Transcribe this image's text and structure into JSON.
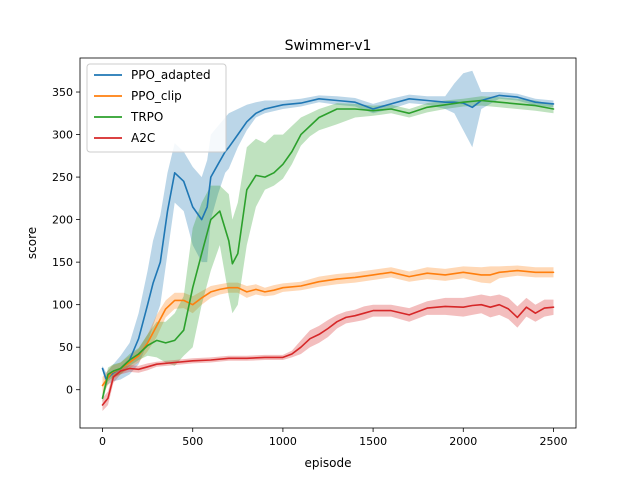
{
  "chart_data": {
    "type": "line",
    "title": "Swimmer-v1",
    "xlabel": "episode",
    "ylabel": "score",
    "xlim": [
      -125,
      2625
    ],
    "ylim": [
      -45,
      390
    ],
    "xticks": [
      0,
      500,
      1000,
      1500,
      2000,
      2500
    ],
    "yticks": [
      0,
      50,
      100,
      150,
      200,
      250,
      300,
      350
    ],
    "grid": false,
    "legend_position": "top-left",
    "series": [
      {
        "name": "PPO_adapted",
        "color": "#1f77b4",
        "x": [
          0,
          20,
          60,
          100,
          150,
          200,
          250,
          280,
          320,
          360,
          400,
          450,
          500,
          550,
          580,
          600,
          640,
          680,
          700,
          750,
          800,
          850,
          900,
          1000,
          1100,
          1200,
          1300,
          1400,
          1500,
          1600,
          1700,
          1800,
          1900,
          1950,
          2000,
          2050,
          2100,
          2200,
          2300,
          2400,
          2500
        ],
        "y": [
          25,
          12,
          20,
          25,
          35,
          60,
          100,
          125,
          150,
          210,
          255,
          245,
          215,
          200,
          215,
          250,
          265,
          280,
          285,
          300,
          315,
          325,
          330,
          335,
          337,
          342,
          340,
          338,
          330,
          336,
          342,
          340,
          338,
          338,
          337,
          332,
          340,
          346,
          344,
          338,
          336
        ],
        "lower": [
          22,
          5,
          10,
          12,
          18,
          30,
          55,
          75,
          100,
          160,
          220,
          210,
          170,
          150,
          150,
          200,
          230,
          255,
          260,
          285,
          305,
          320,
          325,
          330,
          333,
          338,
          335,
          333,
          325,
          330,
          337,
          335,
          330,
          325,
          305,
          285,
          330,
          342,
          340,
          334,
          332
        ],
        "upper": [
          28,
          20,
          30,
          40,
          55,
          90,
          140,
          175,
          205,
          255,
          290,
          280,
          262,
          250,
          270,
          300,
          310,
          320,
          325,
          330,
          335,
          338,
          340,
          340,
          342,
          346,
          345,
          343,
          336,
          342,
          347,
          345,
          345,
          360,
          372,
          375,
          350,
          350,
          348,
          342,
          340
        ]
      },
      {
        "name": "PPO_clip",
        "color": "#ff7f0e",
        "x": [
          0,
          50,
          100,
          150,
          200,
          250,
          300,
          350,
          400,
          450,
          500,
          550,
          600,
          650,
          700,
          750,
          800,
          850,
          900,
          950,
          1000,
          1100,
          1200,
          1300,
          1400,
          1500,
          1600,
          1700,
          1800,
          1900,
          2000,
          2100,
          2150,
          2200,
          2300,
          2400,
          2500
        ],
        "y": [
          5,
          20,
          25,
          32,
          40,
          55,
          75,
          95,
          105,
          105,
          100,
          108,
          115,
          118,
          120,
          120,
          115,
          118,
          115,
          117,
          120,
          122,
          127,
          130,
          132,
          135,
          138,
          133,
          137,
          135,
          138,
          135,
          135,
          138,
          140,
          138,
          138
        ],
        "lower": [
          -5,
          12,
          18,
          25,
          32,
          45,
          62,
          85,
          95,
          96,
          90,
          100,
          108,
          112,
          114,
          114,
          108,
          112,
          110,
          111,
          115,
          117,
          121,
          124,
          126,
          129,
          132,
          127,
          130,
          128,
          131,
          126,
          125,
          131,
          134,
          132,
          132
        ],
        "upper": [
          15,
          28,
          32,
          40,
          48,
          65,
          88,
          105,
          114,
          114,
          110,
          116,
          122,
          124,
          126,
          126,
          122,
          124,
          120,
          123,
          125,
          127,
          133,
          136,
          138,
          141,
          144,
          139,
          144,
          142,
          145,
          144,
          145,
          145,
          146,
          144,
          144
        ]
      },
      {
        "name": "TRPO",
        "color": "#2ca02c",
        "x": [
          0,
          30,
          60,
          100,
          150,
          200,
          250,
          300,
          350,
          400,
          450,
          500,
          550,
          600,
          650,
          700,
          720,
          750,
          800,
          850,
          900,
          950,
          1000,
          1050,
          1100,
          1150,
          1200,
          1300,
          1400,
          1500,
          1600,
          1700,
          1800,
          1900,
          2000,
          2100,
          2200,
          2300,
          2400,
          2500
        ],
        "y": [
          -10,
          18,
          22,
          25,
          35,
          42,
          52,
          58,
          55,
          58,
          70,
          120,
          160,
          200,
          210,
          175,
          148,
          160,
          235,
          252,
          250,
          255,
          265,
          280,
          300,
          310,
          320,
          330,
          330,
          328,
          330,
          325,
          332,
          335,
          338,
          340,
          338,
          336,
          334,
          330
        ],
        "lower": [
          -15,
          10,
          15,
          18,
          28,
          35,
          40,
          38,
          32,
          28,
          40,
          50,
          100,
          140,
          170,
          110,
          90,
          100,
          170,
          215,
          235,
          240,
          248,
          265,
          287,
          298,
          305,
          312,
          320,
          322,
          325,
          320,
          326,
          330,
          333,
          334,
          332,
          330,
          328,
          325
        ],
        "upper": [
          -5,
          26,
          30,
          32,
          42,
          49,
          65,
          80,
          80,
          90,
          110,
          190,
          220,
          240,
          240,
          230,
          200,
          220,
          285,
          295,
          290,
          300,
          300,
          310,
          320,
          325,
          330,
          337,
          336,
          334,
          335,
          330,
          337,
          340,
          342,
          345,
          344,
          342,
          340,
          335
        ]
      },
      {
        "name": "A2C",
        "color": "#d62728",
        "x": [
          0,
          30,
          60,
          100,
          150,
          200,
          250,
          300,
          400,
          500,
          600,
          700,
          800,
          900,
          1000,
          1050,
          1100,
          1150,
          1200,
          1250,
          1300,
          1350,
          1400,
          1450,
          1500,
          1600,
          1700,
          1800,
          1900,
          2000,
          2050,
          2100,
          2150,
          2200,
          2250,
          2300,
          2350,
          2400,
          2450,
          2500
        ],
        "y": [
          -18,
          -10,
          15,
          22,
          25,
          24,
          27,
          30,
          32,
          34,
          35,
          37,
          37,
          38,
          38,
          42,
          50,
          60,
          65,
          72,
          80,
          85,
          87,
          90,
          93,
          93,
          88,
          96,
          98,
          97,
          99,
          100,
          97,
          100,
          95,
          85,
          97,
          90,
          96,
          97
        ],
        "lower": [
          -25,
          -18,
          8,
          18,
          21,
          20,
          23,
          27,
          29,
          31,
          32,
          34,
          34,
          35,
          35,
          38,
          42,
          50,
          55,
          62,
          72,
          78,
          80,
          82,
          86,
          86,
          80,
          88,
          88,
          86,
          88,
          90,
          85,
          88,
          83,
          73,
          86,
          80,
          86,
          88
        ],
        "upper": [
          -10,
          -2,
          22,
          26,
          29,
          28,
          31,
          33,
          35,
          37,
          38,
          40,
          40,
          41,
          41,
          46,
          58,
          70,
          75,
          82,
          88,
          92,
          94,
          98,
          100,
          100,
          96,
          104,
          108,
          108,
          110,
          112,
          110,
          112,
          108,
          98,
          108,
          100,
          106,
          106
        ]
      }
    ]
  }
}
